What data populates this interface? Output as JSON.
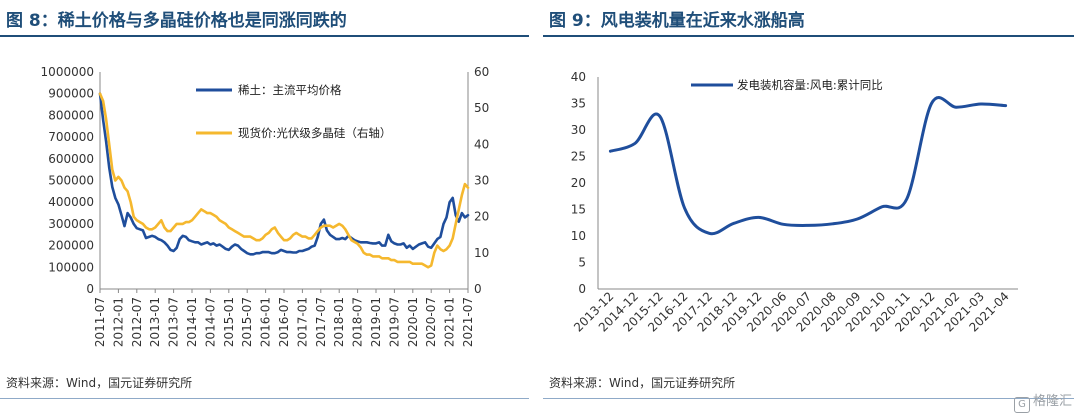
{
  "left": {
    "title": "图 8：稀土价格与多晶硅价格也是同涨同跌的",
    "source": "资料来源：Wind，国元证券研究所"
  },
  "right": {
    "title": "图 9：风电装机量在近来水涨船高",
    "source": "资料来源：Wind，国元证券研究所"
  },
  "watermark": {
    "text": "格隆汇",
    "icon": "G"
  },
  "colors": {
    "title": "#1f4e79",
    "series_blue": "#1f4e9c",
    "series_yellow": "#f5b82e"
  },
  "chart_data": [
    {
      "type": "line",
      "title": "",
      "x_tick_labels": [
        "2011-07",
        "2012-01",
        "2012-07",
        "2013-01",
        "2013-07",
        "2014-01",
        "2014-07",
        "2015-01",
        "2015-07",
        "2016-01",
        "2016-07",
        "2017-01",
        "2017-07",
        "2018-01",
        "2018-07",
        "2019-01",
        "2019-07",
        "2020-01",
        "2020-07",
        "2021-01",
        "2021-07"
      ],
      "ylim": [
        0,
        1000000
      ],
      "y_ticks": [
        "0",
        "100000",
        "200000",
        "300000",
        "400000",
        "500000",
        "600000",
        "700000",
        "800000",
        "900000",
        "1000000"
      ],
      "y2lim": [
        0,
        60
      ],
      "y2_ticks": [
        "0",
        "10",
        "20",
        "30",
        "40",
        "50",
        "60"
      ],
      "legend_position": "top-center",
      "series": [
        {
          "name": "稀土：主流平均价格",
          "axis": "left",
          "color": "#1f4e9c",
          "x": [
            "2011-07",
            "2011-08",
            "2011-09",
            "2011-10",
            "2011-11",
            "2011-12",
            "2012-01",
            "2012-02",
            "2012-03",
            "2012-04",
            "2012-05",
            "2012-06",
            "2012-07",
            "2012-08",
            "2012-09",
            "2012-10",
            "2012-11",
            "2012-12",
            "2013-01",
            "2013-02",
            "2013-03",
            "2013-04",
            "2013-05",
            "2013-06",
            "2013-07",
            "2013-08",
            "2013-09",
            "2013-10",
            "2013-11",
            "2013-12",
            "2014-01",
            "2014-02",
            "2014-03",
            "2014-04",
            "2014-05",
            "2014-06",
            "2014-07",
            "2014-08",
            "2014-09",
            "2014-10",
            "2014-11",
            "2014-12",
            "2015-01",
            "2015-02",
            "2015-03",
            "2015-04",
            "2015-05",
            "2015-06",
            "2015-07",
            "2015-08",
            "2015-09",
            "2015-10",
            "2015-11",
            "2015-12",
            "2016-01",
            "2016-02",
            "2016-03",
            "2016-04",
            "2016-05",
            "2016-06",
            "2016-07",
            "2016-08",
            "2016-09",
            "2016-10",
            "2016-11",
            "2016-12",
            "2017-01",
            "2017-02",
            "2017-03",
            "2017-04",
            "2017-05",
            "2017-06",
            "2017-07",
            "2017-08",
            "2017-09",
            "2017-10",
            "2017-11",
            "2017-12",
            "2018-01",
            "2018-02",
            "2018-03",
            "2018-04",
            "2018-05",
            "2018-06",
            "2018-07",
            "2018-08",
            "2018-09",
            "2018-10",
            "2018-11",
            "2018-12",
            "2019-01",
            "2019-02",
            "2019-03",
            "2019-04",
            "2019-05",
            "2019-06",
            "2019-07",
            "2019-08",
            "2019-09",
            "2019-10",
            "2019-11",
            "2019-12",
            "2020-01",
            "2020-02",
            "2020-03",
            "2020-04",
            "2020-05",
            "2020-06",
            "2020-07",
            "2020-08",
            "2020-09",
            "2020-10",
            "2020-11",
            "2020-12",
            "2021-01",
            "2021-02",
            "2021-03",
            "2021-04",
            "2021-05",
            "2021-06",
            "2021-07"
          ],
          "values": [
            900000,
            780000,
            680000,
            560000,
            470000,
            420000,
            390000,
            340000,
            290000,
            350000,
            330000,
            300000,
            280000,
            275000,
            270000,
            235000,
            240000,
            245000,
            240000,
            230000,
            225000,
            215000,
            200000,
            180000,
            175000,
            190000,
            230000,
            245000,
            240000,
            225000,
            220000,
            215000,
            215000,
            205000,
            210000,
            215000,
            205000,
            210000,
            200000,
            205000,
            195000,
            185000,
            180000,
            195000,
            205000,
            200000,
            185000,
            175000,
            165000,
            160000,
            160000,
            165000,
            165000,
            170000,
            170000,
            170000,
            165000,
            165000,
            170000,
            180000,
            175000,
            170000,
            170000,
            168000,
            168000,
            175000,
            175000,
            180000,
            185000,
            195000,
            200000,
            240000,
            300000,
            320000,
            270000,
            250000,
            240000,
            230000,
            230000,
            235000,
            230000,
            245000,
            235000,
            225000,
            220000,
            215000,
            215000,
            215000,
            212000,
            210000,
            210000,
            215000,
            200000,
            200000,
            250000,
            220000,
            210000,
            205000,
            205000,
            210000,
            190000,
            200000,
            185000,
            195000,
            205000,
            210000,
            215000,
            195000,
            190000,
            210000,
            230000,
            240000,
            300000,
            330000,
            400000,
            420000,
            340000,
            310000,
            350000,
            330000,
            340000
          ]
        },
        {
          "name": "现货价:光伏级多晶硅（右轴）",
          "axis": "right",
          "color": "#f5b82e",
          "x": [
            "2011-07",
            "2011-08",
            "2011-09",
            "2011-10",
            "2011-11",
            "2011-12",
            "2012-01",
            "2012-02",
            "2012-03",
            "2012-04",
            "2012-05",
            "2012-06",
            "2012-07",
            "2012-08",
            "2012-09",
            "2012-10",
            "2012-11",
            "2012-12",
            "2013-01",
            "2013-02",
            "2013-03",
            "2013-04",
            "2013-05",
            "2013-06",
            "2013-07",
            "2013-08",
            "2013-09",
            "2013-10",
            "2013-11",
            "2013-12",
            "2014-01",
            "2014-02",
            "2014-03",
            "2014-04",
            "2014-05",
            "2014-06",
            "2014-07",
            "2014-08",
            "2014-09",
            "2014-10",
            "2014-11",
            "2014-12",
            "2015-01",
            "2015-02",
            "2015-03",
            "2015-04",
            "2015-05",
            "2015-06",
            "2015-07",
            "2015-08",
            "2015-09",
            "2015-10",
            "2015-11",
            "2015-12",
            "2016-01",
            "2016-02",
            "2016-03",
            "2016-04",
            "2016-05",
            "2016-06",
            "2016-07",
            "2016-08",
            "2016-09",
            "2016-10",
            "2016-11",
            "2016-12",
            "2017-01",
            "2017-02",
            "2017-03",
            "2017-04",
            "2017-05",
            "2017-06",
            "2017-07",
            "2017-08",
            "2017-09",
            "2017-10",
            "2017-11",
            "2017-12",
            "2018-01",
            "2018-02",
            "2018-03",
            "2018-04",
            "2018-05",
            "2018-06",
            "2018-07",
            "2018-08",
            "2018-09",
            "2018-10",
            "2018-11",
            "2018-12",
            "2019-01",
            "2019-02",
            "2019-03",
            "2019-04",
            "2019-05",
            "2019-06",
            "2019-07",
            "2019-08",
            "2019-09",
            "2019-10",
            "2019-11",
            "2019-12",
            "2020-01",
            "2020-02",
            "2020-03",
            "2020-04",
            "2020-05",
            "2020-06",
            "2020-07",
            "2020-08",
            "2020-09",
            "2020-10",
            "2020-11",
            "2020-12",
            "2021-01",
            "2021-02",
            "2021-03",
            "2021-04",
            "2021-05",
            "2021-06",
            "2021-07"
          ],
          "values": [
            54,
            52,
            47,
            40,
            33,
            30,
            31,
            30,
            28,
            27,
            24,
            20,
            19,
            18.5,
            18,
            17,
            16.5,
            16.5,
            17,
            18,
            19,
            17,
            16,
            16,
            17,
            18,
            18,
            18,
            18.5,
            18.5,
            19,
            20,
            21,
            22,
            21.5,
            21,
            21,
            20.5,
            20,
            19,
            18.5,
            18,
            17,
            16.5,
            16,
            15.5,
            15,
            14.5,
            14.5,
            14.5,
            14,
            13.5,
            13.5,
            14,
            15,
            15.5,
            16.5,
            17,
            15.5,
            14.5,
            13.5,
            13.5,
            14,
            15,
            15.5,
            15,
            14.5,
            14.5,
            14,
            14,
            15,
            16,
            17,
            17.5,
            17.5,
            17.5,
            17,
            17.5,
            18,
            17.5,
            16.5,
            15,
            13.5,
            13,
            12.5,
            11.5,
            10,
            9.5,
            9.5,
            9,
            9,
            9,
            8.5,
            8.5,
            8.5,
            8,
            8,
            7.5,
            7.5,
            7.5,
            7.5,
            7.5,
            7,
            7,
            7,
            7,
            6.5,
            6,
            6.5,
            10,
            12,
            11,
            10.5,
            11,
            12,
            14,
            18,
            22,
            26,
            29,
            28
          ]
        }
      ]
    },
    {
      "type": "line",
      "title": "",
      "categories": [
        "2013-12",
        "2014-12",
        "2015-12",
        "2016-12",
        "2017-12",
        "2018-12",
        "2019-12",
        "2020-06",
        "2020-07",
        "2020-08",
        "2020-09",
        "2020-10",
        "2020-11",
        "2020-12",
        "2021-02",
        "2021-03",
        "2021-04"
      ],
      "ylim": [
        0,
        40
      ],
      "y_ticks": [
        "0",
        "5",
        "10",
        "15",
        "20",
        "25",
        "30",
        "35",
        "40"
      ],
      "legend_position": "top-left",
      "series": [
        {
          "name": "发电装机容量:风电:累计同比",
          "color": "#1f4e9c",
          "values": [
            26.0,
            27.5,
            32.6,
            15.3,
            10.5,
            12.4,
            13.5,
            12.2,
            12.0,
            12.3,
            13.2,
            15.5,
            17.0,
            35.0,
            34.3,
            34.9,
            34.6
          ]
        }
      ]
    }
  ]
}
